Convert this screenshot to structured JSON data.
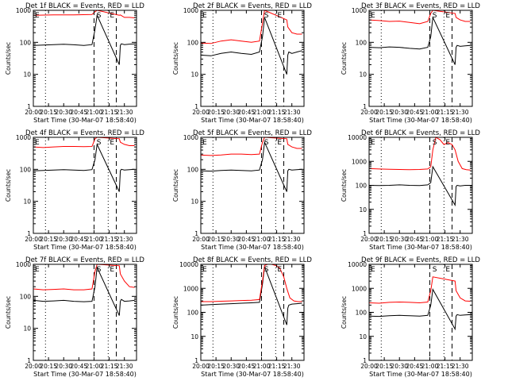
{
  "figure": {
    "xlabel": "Start Time (30-Mar-07 18:58:40)",
    "ylabel": "Counts/sec",
    "x_ticks": [
      "20:00",
      "20:15",
      "20:30",
      "20:45",
      "21:00",
      "21:15",
      "21:30"
    ],
    "x_tick_minutes": [
      0,
      15,
      30,
      45,
      60,
      75,
      90
    ],
    "x_range_minutes": [
      0,
      102
    ],
    "dotted_lines_minutes": [
      12,
      74
    ],
    "dashed_lines_minutes": [
      60,
      82
    ],
    "marker_labels": [
      {
        "text": "S",
        "minute": 61
      },
      {
        "text": "E",
        "minute": 74
      },
      {
        "text": "E",
        "minute": 0
      }
    ],
    "colors": {
      "events": "#000000",
      "lld": "#ff0000",
      "axes": "#000000"
    }
  },
  "chart_data": [
    {
      "type": "line",
      "title": "Det 1f BLACK = Events, RED = LLD",
      "xlabel": "Start Time (30-Mar-07 18:58:40)",
      "ylabel": "Counts/sec",
      "y_scale": "log",
      "ylim": [
        1,
        1000
      ],
      "y_ticks": [
        "1000",
        "100",
        "10",
        "1"
      ],
      "series": [
        {
          "color": "black",
          "x": [
            0,
            10,
            20,
            30,
            40,
            50,
            58,
            61,
            63,
            85,
            86,
            87,
            90,
            95,
            100
          ],
          "y": [
            80,
            82,
            85,
            87,
            84,
            80,
            85,
            250,
            700,
            20,
            80,
            90,
            85,
            88,
            90
          ]
        },
        {
          "color": "red",
          "x": [
            0,
            20,
            40,
            58,
            61,
            63,
            85,
            86,
            90,
            95,
            100
          ],
          "y": [
            700,
            720,
            720,
            740,
            900,
            1000,
            700,
            720,
            600,
            600,
            580
          ]
        }
      ]
    },
    {
      "type": "line",
      "title": "Det 2f BLACK = Events, RED = LLD",
      "xlabel": "Start Time (30-Mar-07 18:58:40)",
      "ylabel": "Counts/sec",
      "y_scale": "log",
      "ylim": [
        1,
        1000
      ],
      "y_ticks": [
        "1000",
        "100",
        "10",
        "1"
      ],
      "series": [
        {
          "color": "black",
          "x": [
            0,
            10,
            20,
            30,
            40,
            50,
            58,
            61,
            63,
            85,
            86,
            87,
            90,
            95,
            100
          ],
          "y": [
            40,
            38,
            45,
            50,
            45,
            42,
            50,
            150,
            600,
            10,
            40,
            50,
            45,
            50,
            55
          ]
        },
        {
          "color": "red",
          "x": [
            0,
            10,
            20,
            30,
            40,
            50,
            58,
            61,
            63,
            85,
            86,
            90,
            95,
            100
          ],
          "y": [
            95,
            92,
            110,
            120,
            110,
            100,
            110,
            400,
            1000,
            500,
            300,
            200,
            180,
            180
          ]
        }
      ]
    },
    {
      "type": "line",
      "title": "Det 3f BLACK = Events, RED = LLD",
      "xlabel": "Start Time (30-Mar-07 18:58:40)",
      "ylabel": "Counts/sec",
      "y_scale": "log",
      "ylim": [
        1,
        1000
      ],
      "y_ticks": [
        "1000",
        "100",
        "10",
        "1"
      ],
      "series": [
        {
          "color": "black",
          "x": [
            0,
            10,
            20,
            30,
            40,
            50,
            58,
            61,
            63,
            85,
            86,
            87,
            90,
            95,
            100
          ],
          "y": [
            70,
            68,
            72,
            70,
            65,
            62,
            70,
            150,
            600,
            20,
            70,
            80,
            75,
            78,
            80
          ]
        },
        {
          "color": "red",
          "x": [
            0,
            10,
            20,
            30,
            40,
            50,
            58,
            61,
            63,
            85,
            86,
            90,
            95,
            100
          ],
          "y": [
            500,
            480,
            450,
            460,
            420,
            380,
            450,
            800,
            1000,
            800,
            600,
            500,
            450,
            450
          ]
        }
      ]
    },
    {
      "type": "line",
      "title": "Det 4f BLACK = Events, RED = LLD",
      "xlabel": "Start Time (30-Mar-07 18:58:40)",
      "ylabel": "Counts/sec",
      "y_scale": "log",
      "ylim": [
        1,
        1000
      ],
      "y_ticks": [
        "1000",
        "100",
        "10",
        "1"
      ],
      "series": [
        {
          "color": "black",
          "x": [
            0,
            10,
            20,
            30,
            40,
            50,
            58,
            61,
            63,
            85,
            86,
            87,
            90,
            95,
            100
          ],
          "y": [
            90,
            92,
            95,
            98,
            95,
            92,
            98,
            200,
            600,
            20,
            90,
            100,
            95,
            98,
            100
          ]
        },
        {
          "color": "red",
          "x": [
            0,
            10,
            20,
            30,
            40,
            50,
            58,
            61,
            63,
            85,
            86,
            90,
            95,
            100
          ],
          "y": [
            500,
            480,
            500,
            520,
            520,
            510,
            520,
            900,
            1000,
            900,
            700,
            600,
            550,
            550
          ]
        }
      ]
    },
    {
      "type": "line",
      "title": "Det 5f BLACK = Events, RED = LLD",
      "xlabel": "Start Time (30-Mar-07 18:58:40)",
      "ylabel": "Counts/sec",
      "y_scale": "log",
      "ylim": [
        1,
        1000
      ],
      "y_ticks": [
        "1000",
        "100",
        "10",
        "1"
      ],
      "series": [
        {
          "color": "black",
          "x": [
            0,
            10,
            20,
            30,
            40,
            50,
            58,
            61,
            63,
            85,
            86,
            87,
            90,
            95,
            100
          ],
          "y": [
            90,
            88,
            92,
            95,
            92,
            90,
            95,
            200,
            700,
            20,
            90,
            100,
            95,
            98,
            100
          ]
        },
        {
          "color": "red",
          "x": [
            0,
            10,
            20,
            30,
            40,
            50,
            58,
            61,
            63,
            85,
            86,
            90,
            95,
            100
          ],
          "y": [
            280,
            270,
            280,
            300,
            300,
            290,
            300,
            700,
            1000,
            900,
            600,
            500,
            450,
            450
          ]
        }
      ]
    },
    {
      "type": "line",
      "title": "Det 6f BLACK = Events, RED = LLD",
      "xlabel": "Start Time (30-Mar-07 18:58:40)",
      "ylabel": "Counts/sec",
      "y_scale": "log",
      "ylim": [
        1,
        10000
      ],
      "y_ticks": [
        "10000",
        "1000",
        "100",
        "10",
        "1"
      ],
      "series": [
        {
          "color": "black",
          "x": [
            0,
            10,
            20,
            30,
            40,
            50,
            58,
            61,
            63,
            85,
            86,
            87,
            90,
            95,
            100
          ],
          "y": [
            100,
            98,
            100,
            105,
            100,
            98,
            105,
            130,
            600,
            15,
            90,
            100,
            95,
            100,
            100
          ]
        },
        {
          "color": "red",
          "x": [
            0,
            10,
            20,
            30,
            40,
            50,
            58,
            61,
            63,
            66,
            70,
            74,
            78,
            82,
            85,
            88,
            92,
            96,
            100
          ],
          "y": [
            500,
            480,
            470,
            460,
            450,
            460,
            480,
            600,
            3000,
            10000,
            8000,
            5000,
            6000,
            5000,
            3000,
            1000,
            500,
            450,
            430
          ]
        }
      ]
    },
    {
      "type": "line",
      "title": "Det 7f BLACK = Events, RED = LLD",
      "xlabel": "Start Time (30-Mar-07 18:58:40)",
      "ylabel": "Counts/sec",
      "y_scale": "log",
      "ylim": [
        1,
        1000
      ],
      "y_ticks": [
        "1000",
        "100",
        "10",
        "1"
      ],
      "series": [
        {
          "color": "black",
          "x": [
            0,
            10,
            20,
            30,
            40,
            50,
            58,
            61,
            63,
            85,
            86,
            87,
            90,
            95,
            100
          ],
          "y": [
            75,
            70,
            72,
            75,
            70,
            68,
            70,
            200,
            800,
            25,
            70,
            80,
            70,
            72,
            75
          ]
        },
        {
          "color": "red",
          "x": [
            0,
            10,
            20,
            30,
            40,
            50,
            58,
            61,
            63,
            85,
            86,
            90,
            95,
            100
          ],
          "y": [
            170,
            160,
            165,
            170,
            160,
            160,
            170,
            600,
            1000,
            900,
            500,
            300,
            200,
            190
          ]
        }
      ]
    },
    {
      "type": "line",
      "title": "Det 8f BLACK = Events, RED = LLD",
      "xlabel": "Start Time (30-Mar-07 18:58:40)",
      "ylabel": "Counts/sec",
      "y_scale": "log",
      "ylim": [
        1,
        10000
      ],
      "y_ticks": [
        "10000",
        "1000",
        "100",
        "10",
        "1"
      ],
      "series": [
        {
          "color": "black",
          "x": [
            0,
            10,
            20,
            30,
            40,
            50,
            58,
            61,
            63,
            85,
            86,
            87,
            90,
            95,
            100
          ],
          "y": [
            200,
            210,
            220,
            230,
            240,
            250,
            260,
            1500,
            8000,
            30,
            150,
            200,
            220,
            230,
            240
          ]
        },
        {
          "color": "red",
          "x": [
            0,
            10,
            20,
            30,
            40,
            50,
            58,
            61,
            63,
            66,
            70,
            74,
            78,
            82,
            85,
            88,
            92,
            96,
            100
          ],
          "y": [
            280,
            280,
            290,
            300,
            310,
            320,
            340,
            2000,
            9000,
            10000,
            10000,
            9000,
            7000,
            3000,
            1000,
            400,
            300,
            280,
            280
          ]
        }
      ]
    },
    {
      "type": "line",
      "title": "Det 9f BLACK = Events, RED = LLD",
      "xlabel": "Start Time (30-Mar-07 18:58:40)",
      "ylabel": "Counts/sec",
      "y_scale": "log",
      "ylim": [
        1,
        10000
      ],
      "y_ticks": [
        "10000",
        "1000",
        "100",
        "10",
        "1"
      ],
      "series": [
        {
          "color": "black",
          "x": [
            0,
            10,
            20,
            30,
            40,
            50,
            58,
            61,
            63,
            85,
            86,
            87,
            90,
            95,
            100
          ],
          "y": [
            70,
            68,
            72,
            75,
            72,
            70,
            75,
            200,
            900,
            20,
            70,
            80,
            75,
            78,
            80
          ]
        },
        {
          "color": "red",
          "x": [
            0,
            10,
            20,
            30,
            40,
            50,
            58,
            61,
            63,
            85,
            86,
            90,
            95,
            100
          ],
          "y": [
            250,
            240,
            260,
            270,
            260,
            250,
            270,
            800,
            3000,
            2000,
            800,
            400,
            300,
            290
          ]
        }
      ]
    }
  ]
}
